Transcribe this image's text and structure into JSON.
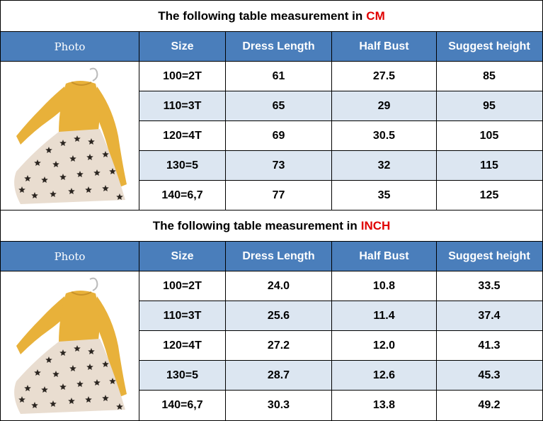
{
  "tables": [
    {
      "title_prefix": "The following table measurement in",
      "unit": "CM",
      "headers": [
        "Photo",
        "Size",
        "Dress Length",
        "Half Bust",
        "Suggest height"
      ],
      "rows": [
        [
          "100=2T",
          "61",
          "27.5",
          "85"
        ],
        [
          "110=3T",
          "65",
          "29",
          "95"
        ],
        [
          "120=4T",
          "69",
          "30.5",
          "105"
        ],
        [
          "130=5",
          "73",
          "32",
          "115"
        ],
        [
          "140=6,7",
          "77",
          "35",
          "125"
        ]
      ]
    },
    {
      "title_prefix": "The following table measurement in",
      "unit": "INCH",
      "headers": [
        "Photo",
        "Size",
        "Dress Length",
        "Half Bust",
        "Suggest height"
      ],
      "rows": [
        [
          "100=2T",
          "24.0",
          "10.8",
          "33.5"
        ],
        [
          "110=3T",
          "25.6",
          "11.4",
          "37.4"
        ],
        [
          "120=4T",
          "27.2",
          "12.0",
          "41.3"
        ],
        [
          "130=5",
          "28.7",
          "12.6",
          "45.3"
        ],
        [
          "140=6,7",
          "30.3",
          "13.8",
          "49.2"
        ]
      ]
    }
  ],
  "colors": {
    "header_bg": "#4a7ebb",
    "alt_row": "#dce6f1",
    "unit_red": "#e00000",
    "dress_yellow": "#e8b13a",
    "tulle": "#e9ddd0"
  },
  "icons": [
    "dress-photo"
  ]
}
